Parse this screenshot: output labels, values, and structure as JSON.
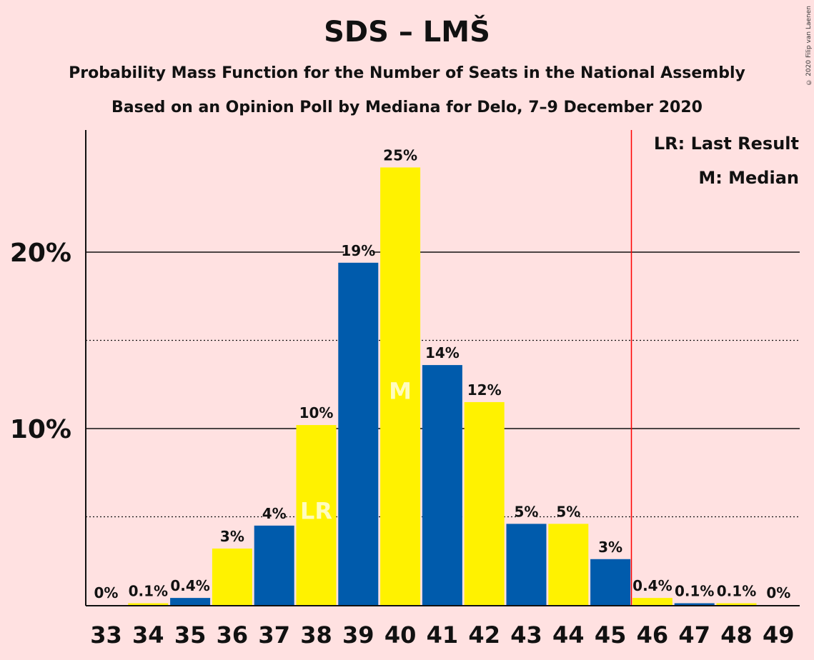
{
  "title": "SDS – LMŠ",
  "subtitle": "Probability Mass Function for the Number of Seats in the National Assembly",
  "subtitle2": "Based on an Opinion Poll by Mediana for Delo, 7–9 December 2020",
  "copyright": "© 2020 Filip van Laenen",
  "legend": {
    "last_result": "LR: Last Result",
    "median": "M: Median"
  },
  "colors": {
    "blue": "#005BAC",
    "yellow": "#FFF200",
    "background": "#FFE1E1",
    "last_result_line": "#FF0000"
  },
  "chart_data": {
    "type": "bar",
    "categories": [
      "33",
      "34",
      "35",
      "36",
      "37",
      "38",
      "39",
      "40",
      "41",
      "42",
      "43",
      "44",
      "45",
      "46",
      "47",
      "48",
      "49"
    ],
    "values": [
      0,
      0.1,
      0.4,
      3.2,
      4.5,
      10.2,
      19.4,
      24.8,
      13.6,
      11.5,
      4.6,
      4.6,
      2.6,
      0.4,
      0.1,
      0.1,
      0
    ],
    "labels": [
      "0%",
      "0.1%",
      "0.4%",
      "3%",
      "4%",
      "10%",
      "19%",
      "25%",
      "14%",
      "12%",
      "5%",
      "5%",
      "3%",
      "0.4%",
      "0.1%",
      "0.1%",
      "0%"
    ],
    "bar_colors": [
      "blue",
      "yellow",
      "blue",
      "yellow",
      "blue",
      "yellow",
      "blue",
      "yellow",
      "blue",
      "yellow",
      "blue",
      "yellow",
      "blue",
      "yellow",
      "blue",
      "yellow",
      "blue"
    ],
    "ylim": [
      0,
      27
    ],
    "major_ticks": [
      10,
      20
    ],
    "major_tick_labels": [
      "10%",
      "20%"
    ],
    "minor_gridlines": [
      5,
      15
    ],
    "last_result_seat": "38",
    "last_result_marker": "LR",
    "median_seat": "40",
    "median_marker": "M",
    "majority_line_after": "45",
    "legend_placement": "top-right"
  }
}
